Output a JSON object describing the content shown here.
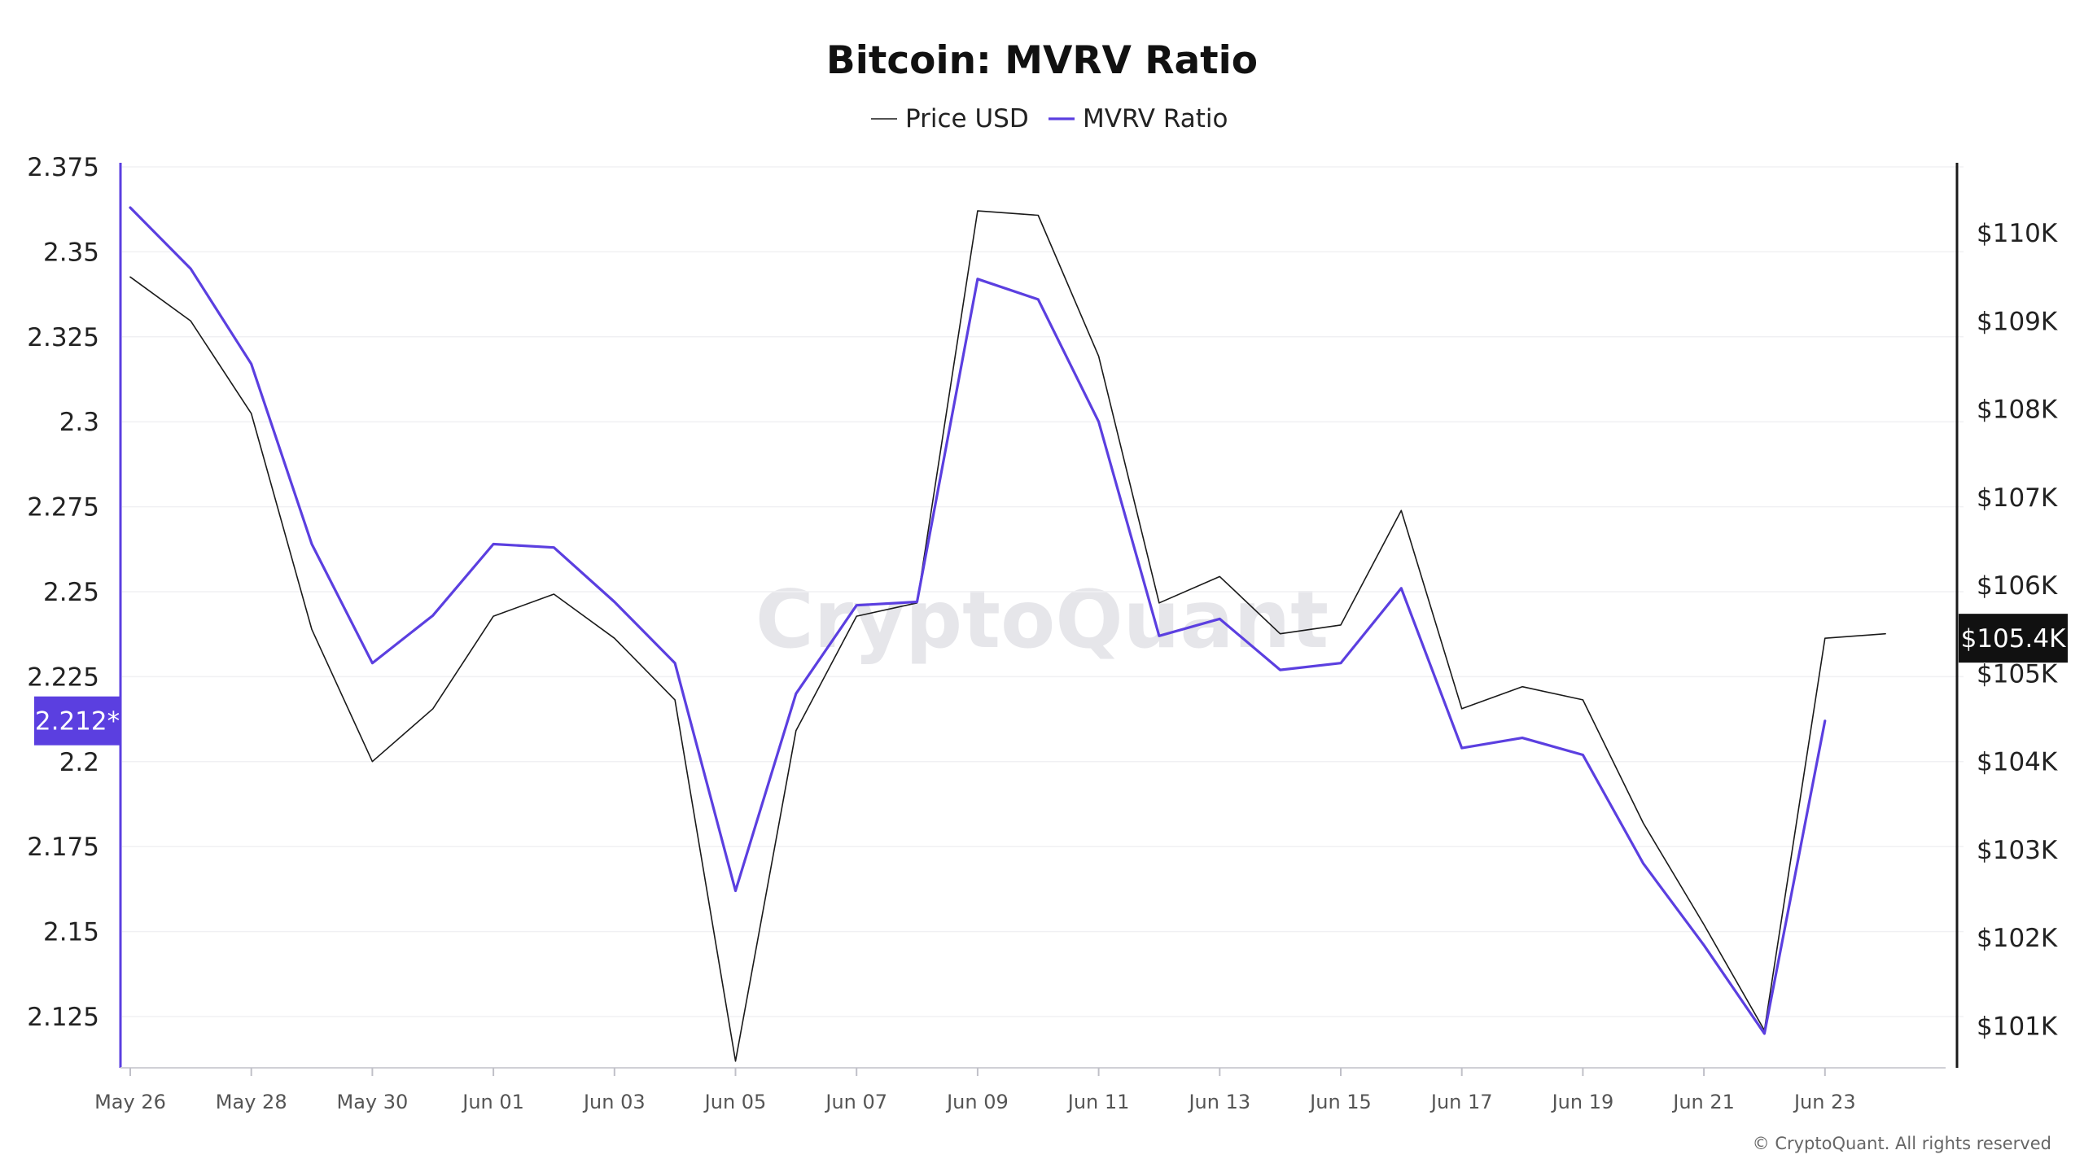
{
  "chart_data": {
    "type": "line",
    "title": "Bitcoin: MVRV Ratio",
    "legend": {
      "placement": "top-center",
      "entries": [
        "Price USD",
        "MVRV Ratio"
      ]
    },
    "x": [
      "May 26",
      "May 27",
      "May 28",
      "May 29",
      "May 30",
      "May 31",
      "Jun 01",
      "Jun 02",
      "Jun 03",
      "Jun 04",
      "Jun 05",
      "Jun 06",
      "Jun 07",
      "Jun 08",
      "Jun 09",
      "Jun 10",
      "Jun 11",
      "Jun 12",
      "Jun 13",
      "Jun 14",
      "Jun 15",
      "Jun 16",
      "Jun 17",
      "Jun 18",
      "Jun 19",
      "Jun 20",
      "Jun 21",
      "Jun 22",
      "Jun 23",
      "Jun 24"
    ],
    "x_tick_labels": [
      "May 26",
      "May 28",
      "May 30",
      "Jun 01",
      "Jun 03",
      "Jun 05",
      "Jun 07",
      "Jun 09",
      "Jun 11",
      "Jun 13",
      "Jun 15",
      "Jun 17",
      "Jun 19",
      "Jun 21",
      "Jun 23"
    ],
    "series": [
      {
        "name": "Price USD",
        "axis": "right",
        "color": "#1a1a1a",
        "values": [
          109500,
          109000,
          107950,
          105500,
          104000,
          104600,
          105650,
          105900,
          105400,
          104700,
          100600,
          104350,
          105650,
          105800,
          110250,
          110200,
          108600,
          105800,
          106100,
          105450,
          105550,
          106850,
          104600,
          104850,
          104700,
          103300,
          102150,
          100950,
          105400,
          105450
        ]
      },
      {
        "name": "MVRV Ratio",
        "axis": "left",
        "color": "#5b3fe0",
        "values": [
          2.363,
          2.345,
          2.317,
          2.264,
          2.229,
          2.243,
          2.264,
          2.263,
          2.247,
          2.229,
          2.162,
          2.22,
          2.246,
          2.247,
          2.342,
          2.336,
          2.3,
          2.237,
          2.242,
          2.227,
          2.229,
          2.251,
          2.204,
          2.207,
          2.202,
          2.17,
          2.146,
          2.12,
          2.212,
          null
        ]
      }
    ],
    "y_left": {
      "ylim": [
        2.108,
        2.375
      ],
      "ticks": [
        2.125,
        2.15,
        2.175,
        2.2,
        2.225,
        2.25,
        2.275,
        2.3,
        2.325,
        2.35,
        2.375
      ],
      "tick_labels": [
        "2.125",
        "2.15",
        "2.175",
        "2.2",
        "2.225",
        "2.25",
        "2.275",
        "2.3",
        "2.325",
        "2.35",
        "2.375"
      ],
      "color": "#5b3fe0"
    },
    "y_right": {
      "ylim": [
        100450,
        110750
      ],
      "ticks": [
        101000,
        102000,
        103000,
        104000,
        105000,
        106000,
        107000,
        108000,
        109000,
        110000
      ],
      "tick_labels": [
        "$101K",
        "$102K",
        "$103K",
        "$104K",
        "$105K",
        "$106K",
        "$107K",
        "$108K",
        "$109K",
        "$110K"
      ],
      "color": "#1a1a1a"
    },
    "grid": true,
    "current_value_badges": {
      "left": {
        "label": "2.212*",
        "value": 2.212,
        "color": "#5b3fe0"
      },
      "right": {
        "label": "$105.4K",
        "value": 105400,
        "color": "#111111"
      }
    },
    "watermark": "CryptoQuant",
    "copyright": "© CryptoQuant. All rights reserved"
  }
}
